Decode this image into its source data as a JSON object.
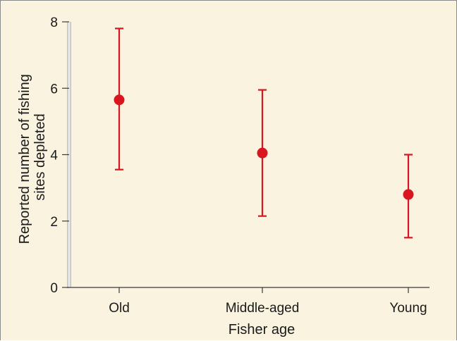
{
  "chart_data": {
    "type": "scatter",
    "title": "",
    "xlabel": "Fisher age",
    "ylabel_lines": [
      "Reported number of fishing",
      "sites depleted"
    ],
    "categories": [
      "Old",
      "Middle-aged",
      "Young"
    ],
    "series": [
      {
        "values": [
          5.65,
          4.05,
          2.8
        ],
        "lower": [
          3.55,
          2.15,
          1.5
        ],
        "upper": [
          7.8,
          5.95,
          4.0
        ]
      }
    ],
    "ylim": [
      0,
      8
    ],
    "yticks": [
      0,
      2,
      4,
      6,
      8
    ],
    "grid": false,
    "legend": "none",
    "marker_color": "#d9151f",
    "background_color": "#faf3e0"
  }
}
